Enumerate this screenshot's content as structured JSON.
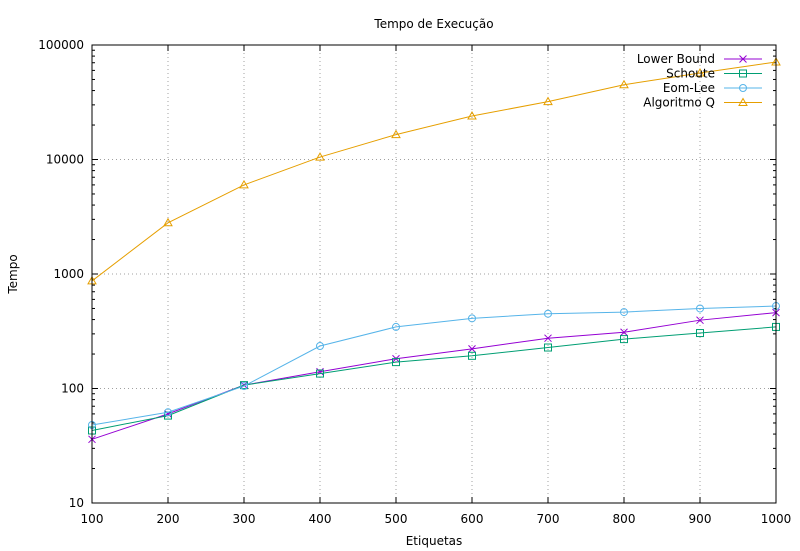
{
  "chart_data": {
    "type": "line",
    "title": "Tempo de Execução",
    "xlabel": "Etiquetas",
    "ylabel": "Tempo",
    "x": [
      100,
      200,
      300,
      400,
      500,
      600,
      700,
      800,
      900,
      1000
    ],
    "xlim": [
      100,
      1000
    ],
    "ylim": [
      10,
      100000
    ],
    "yscale": "log",
    "x_ticks": [
      "100",
      "200",
      "300",
      "400",
      "500",
      "600",
      "700",
      "800",
      "900",
      "1000"
    ],
    "y_ticks": [
      {
        "value": 10,
        "label": "10"
      },
      {
        "value": 100,
        "label": "100"
      },
      {
        "value": 1000,
        "label": "1000"
      },
      {
        "value": 10000,
        "label": "10000"
      },
      {
        "value": 100000,
        "label": "100000"
      }
    ],
    "grid": true,
    "legend_position": "top-right",
    "series": [
      {
        "name": "Lower Bound",
        "color": "#9400d3",
        "marker": "x",
        "values": [
          36,
          60,
          107,
          140,
          182,
          222,
          275,
          310,
          395,
          460
        ]
      },
      {
        "name": "Schoute",
        "color": "#009e73",
        "marker": "square",
        "values": [
          43,
          58,
          107,
          135,
          170,
          193,
          228,
          270,
          305,
          345
        ]
      },
      {
        "name": "Eom-Lee",
        "color": "#56b4e9",
        "marker": "circle",
        "values": [
          48,
          62,
          105,
          235,
          345,
          410,
          450,
          465,
          500,
          525
        ]
      },
      {
        "name": "Algoritmo Q",
        "color": "#e69f00",
        "marker": "triangle",
        "values": [
          870,
          2800,
          6000,
          10500,
          16500,
          24000,
          32000,
          45000,
          57000,
          71000
        ]
      }
    ]
  }
}
